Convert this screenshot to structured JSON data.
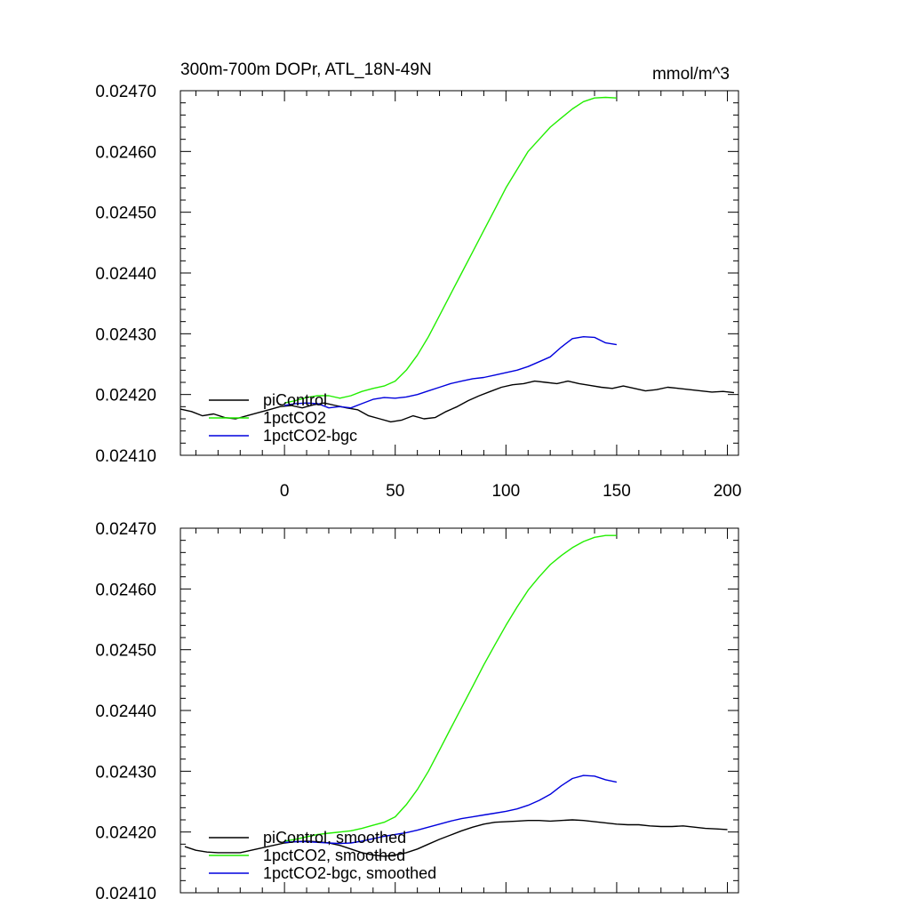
{
  "chart_data": [
    {
      "type": "line",
      "title": "300m-700m DOPr, ATL_18N-49N",
      "units": "mmol/m^3",
      "xlim": [
        -47,
        205
      ],
      "ylim": [
        0.0241,
        0.0247
      ],
      "xticks": [
        "0",
        "50",
        "100",
        "150",
        "200"
      ],
      "yticks": [
        "0.02410",
        "0.02420",
        "0.02430",
        "0.02440",
        "0.02450",
        "0.02460",
        "0.02470"
      ],
      "legend_position": "bottom-left",
      "colors": {
        "piControl": "#000000",
        "1pctCO2": "#22ee00",
        "1pctCO2-bgc": "#0000dd"
      },
      "series": [
        {
          "name": "piControl",
          "x": [
            -47,
            -42,
            -37,
            -32,
            -27,
            -22,
            -17,
            -12,
            -7,
            -2,
            3,
            8,
            13,
            18,
            23,
            28,
            33,
            38,
            43,
            48,
            53,
            58,
            63,
            68,
            73,
            78,
            83,
            88,
            93,
            98,
            103,
            108,
            113,
            118,
            123,
            128,
            133,
            138,
            143,
            148,
            153,
            158,
            163,
            168,
            173,
            178,
            183,
            188,
            193,
            198,
            203
          ],
          "y": [
            0.024176,
            0.024172,
            0.024165,
            0.024168,
            0.024162,
            0.02416,
            0.024165,
            0.02417,
            0.024175,
            0.02418,
            0.024182,
            0.024178,
            0.024183,
            0.024186,
            0.024182,
            0.024178,
            0.024175,
            0.024165,
            0.02416,
            0.024155,
            0.024158,
            0.024165,
            0.02416,
            0.024162,
            0.024172,
            0.02418,
            0.02419,
            0.024198,
            0.024205,
            0.024212,
            0.024216,
            0.024218,
            0.024222,
            0.02422,
            0.024218,
            0.024222,
            0.024218,
            0.024215,
            0.024212,
            0.02421,
            0.024214,
            0.02421,
            0.024206,
            0.024208,
            0.024212,
            0.02421,
            0.024208,
            0.024206,
            0.024204,
            0.024205,
            0.024203
          ]
        },
        {
          "name": "1pctCO2",
          "x": [
            0,
            5,
            10,
            15,
            20,
            25,
            30,
            35,
            40,
            45,
            50,
            55,
            60,
            65,
            70,
            75,
            80,
            85,
            90,
            95,
            100,
            105,
            110,
            115,
            120,
            125,
            130,
            135,
            140,
            145,
            150
          ],
          "y": [
            0.024186,
            0.02419,
            0.024195,
            0.024198,
            0.024198,
            0.024194,
            0.024198,
            0.024205,
            0.02421,
            0.024214,
            0.024222,
            0.02424,
            0.024265,
            0.024295,
            0.02433,
            0.024365,
            0.0244,
            0.024435,
            0.02447,
            0.024505,
            0.02454,
            0.02457,
            0.0246,
            0.02462,
            0.02464,
            0.024655,
            0.02467,
            0.024682,
            0.024688,
            0.024689,
            0.024688
          ]
        },
        {
          "name": "1pctCO2-bgc",
          "x": [
            0,
            5,
            10,
            15,
            20,
            25,
            30,
            35,
            40,
            45,
            50,
            55,
            60,
            65,
            70,
            75,
            80,
            85,
            90,
            95,
            100,
            105,
            110,
            115,
            120,
            125,
            130,
            135,
            140,
            145,
            150
          ],
          "y": [
            0.024182,
            0.024185,
            0.024186,
            0.024185,
            0.024178,
            0.02418,
            0.024178,
            0.024185,
            0.024192,
            0.024195,
            0.024194,
            0.024196,
            0.0242,
            0.024206,
            0.024212,
            0.024218,
            0.024222,
            0.024226,
            0.024228,
            0.024232,
            0.024236,
            0.02424,
            0.024246,
            0.024254,
            0.024262,
            0.024278,
            0.024292,
            0.024295,
            0.024294,
            0.024285,
            0.024282
          ]
        }
      ]
    },
    {
      "type": "line",
      "title": "",
      "units": "",
      "xlim": [
        -47,
        205
      ],
      "ylim": [
        0.0241,
        0.0247
      ],
      "xticks": [],
      "yticks": [
        "0.02410",
        "0.02420",
        "0.02430",
        "0.02440",
        "0.02450",
        "0.02460",
        "0.02470"
      ],
      "legend_position": "bottom-left",
      "colors": {
        "piControl, smoothed": "#000000",
        "1pctCO2, smoothed": "#22ee00",
        "1pctCO2-bgc, smoothed": "#0000dd"
      },
      "series": [
        {
          "name": "piControl, smoothed",
          "x": [
            -45,
            -40,
            -35,
            -30,
            -25,
            -20,
            -15,
            -10,
            -5,
            0,
            5,
            10,
            15,
            20,
            25,
            30,
            35,
            40,
            45,
            50,
            55,
            60,
            65,
            70,
            75,
            80,
            85,
            90,
            95,
            100,
            105,
            110,
            115,
            120,
            125,
            130,
            135,
            140,
            145,
            150,
            155,
            160,
            165,
            170,
            175,
            180,
            185,
            190,
            195,
            200
          ],
          "y": [
            0.024176,
            0.02417,
            0.024167,
            0.024166,
            0.024166,
            0.024166,
            0.02417,
            0.024174,
            0.024178,
            0.024182,
            0.024184,
            0.024185,
            0.024184,
            0.024182,
            0.024178,
            0.024172,
            0.024166,
            0.024162,
            0.02416,
            0.024162,
            0.024166,
            0.024172,
            0.02418,
            0.024188,
            0.024195,
            0.024202,
            0.024208,
            0.024213,
            0.024216,
            0.024217,
            0.024218,
            0.024219,
            0.024219,
            0.024218,
            0.024219,
            0.02422,
            0.024219,
            0.024217,
            0.024215,
            0.024213,
            0.024212,
            0.024212,
            0.02421,
            0.024209,
            0.024209,
            0.02421,
            0.024208,
            0.024206,
            0.024205,
            0.024204
          ]
        },
        {
          "name": "1pctCO2, smoothed",
          "x": [
            0,
            5,
            10,
            15,
            20,
            25,
            30,
            35,
            40,
            45,
            50,
            55,
            60,
            65,
            70,
            75,
            80,
            85,
            90,
            95,
            100,
            105,
            110,
            115,
            120,
            125,
            130,
            135,
            140,
            145,
            150
          ],
          "y": [
            0.024185,
            0.024188,
            0.024192,
            0.024196,
            0.024198,
            0.0242,
            0.024202,
            0.024206,
            0.024211,
            0.024216,
            0.024225,
            0.024245,
            0.02427,
            0.0243,
            0.024335,
            0.02437,
            0.024405,
            0.02444,
            0.024475,
            0.024508,
            0.02454,
            0.02457,
            0.024598,
            0.02462,
            0.02464,
            0.024655,
            0.024668,
            0.024678,
            0.024685,
            0.024688,
            0.024688
          ]
        },
        {
          "name": "1pctCO2-bgc, smoothed",
          "x": [
            0,
            5,
            10,
            15,
            20,
            25,
            30,
            35,
            40,
            45,
            50,
            55,
            60,
            65,
            70,
            75,
            80,
            85,
            90,
            95,
            100,
            105,
            110,
            115,
            120,
            125,
            130,
            135,
            140,
            145,
            150
          ],
          "y": [
            0.024183,
            0.024184,
            0.024184,
            0.024183,
            0.024182,
            0.024181,
            0.024182,
            0.024185,
            0.024189,
            0.024193,
            0.024196,
            0.024199,
            0.024203,
            0.024208,
            0.024213,
            0.024218,
            0.024222,
            0.024225,
            0.024228,
            0.024231,
            0.024234,
            0.024238,
            0.024244,
            0.024252,
            0.024262,
            0.024276,
            0.024288,
            0.024293,
            0.024292,
            0.024286,
            0.024282
          ]
        }
      ]
    }
  ]
}
